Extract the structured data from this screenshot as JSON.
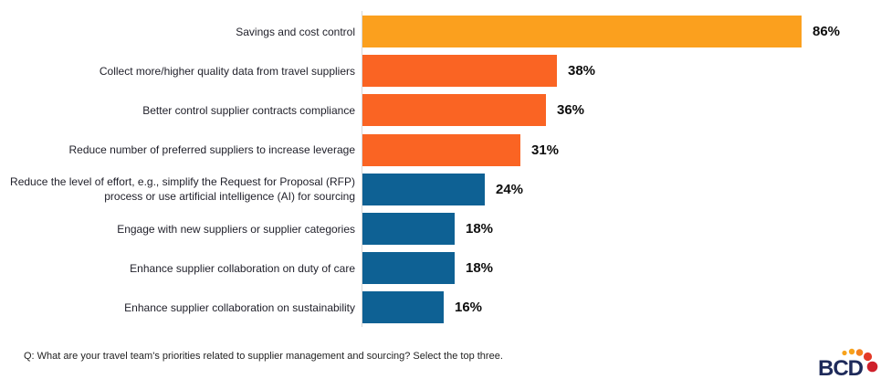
{
  "chart_data": {
    "type": "bar",
    "orientation": "horizontal",
    "title": "",
    "xlabel": "",
    "ylabel": "",
    "value_axis_visible": false,
    "grid": false,
    "legend": false,
    "xlim": [
      0,
      86
    ],
    "categories": [
      "Savings and cost control",
      "Collect more/higher quality data from travel suppliers",
      "Better control supplier contracts compliance",
      "Reduce number of preferred suppliers to increase leverage",
      "Reduce the level of effort, e.g., simplify the Request for Proposal (RFP) process or use artificial intelligence (AI) for sourcing",
      "Engage with new suppliers or supplier categories",
      "Enhance supplier collaboration on duty of care",
      "Enhance supplier collaboration on sustainability"
    ],
    "values": [
      86,
      38,
      36,
      31,
      24,
      18,
      18,
      16
    ],
    "value_labels": [
      "86%",
      "38%",
      "36%",
      "31%",
      "24%",
      "18%",
      "18%",
      "16%"
    ],
    "bar_colors": [
      "#FBA01E",
      "#FA6423",
      "#FA6423",
      "#FA6423",
      "#0E6194",
      "#0E6194",
      "#0E6194",
      "#0E6194"
    ],
    "accent_colors": {
      "amber": "#FBA01E",
      "orange": "#FA6423",
      "blue": "#0E6194",
      "axis_gray": "#D8D8D8"
    }
  },
  "footer": {
    "question": "Q: What are your travel team's priorities related to supplier management and sourcing? Select the top three."
  },
  "logo": {
    "text": "BCD",
    "text_color": "#1E2A5A",
    "dot_colors": [
      "#F7A21B",
      "#F7A21B",
      "#F4821F",
      "#E33A27",
      "#CE202B"
    ]
  }
}
